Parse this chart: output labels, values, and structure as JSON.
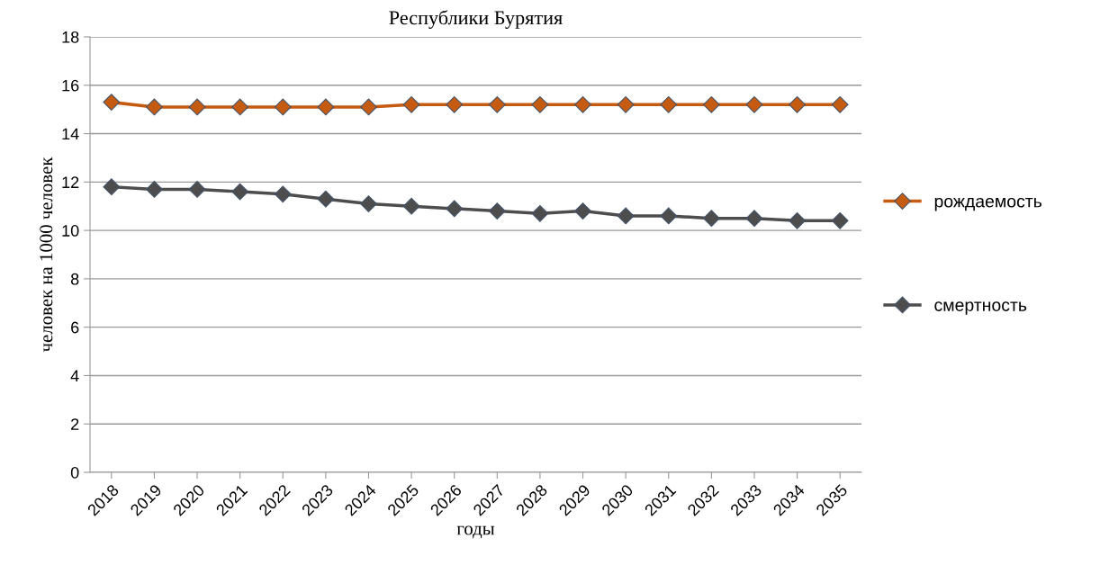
{
  "chart_data": {
    "type": "line",
    "title": "Республики Бурятия",
    "xlabel": "годы",
    "ylabel": "человек на 1000 человек",
    "categories": [
      "2018",
      "2019",
      "2020",
      "2021",
      "2022",
      "2023",
      "2024",
      "2025",
      "2026",
      "2027",
      "2028",
      "2029",
      "2030",
      "2031",
      "2032",
      "2033",
      "2034",
      "2035"
    ],
    "series": [
      {
        "name": "рождаемость",
        "color": "#c55a11",
        "values": [
          15.3,
          15.1,
          15.1,
          15.1,
          15.1,
          15.1,
          15.1,
          15.2,
          15.2,
          15.2,
          15.2,
          15.2,
          15.2,
          15.2,
          15.2,
          15.2,
          15.2,
          15.2
        ]
      },
      {
        "name": "смертность",
        "color": "#4d4d4d",
        "values": [
          11.8,
          11.7,
          11.7,
          11.6,
          11.5,
          11.3,
          11.1,
          11.0,
          10.9,
          10.8,
          10.7,
          10.8,
          10.6,
          10.6,
          10.5,
          10.5,
          10.4,
          10.4
        ]
      }
    ],
    "ylim": [
      0,
      18
    ],
    "yticks": [
      0,
      2,
      4,
      6,
      8,
      10,
      12,
      14,
      16,
      18
    ],
    "grid": "y",
    "legend": "right",
    "marker": "diamond",
    "line_style": "solid"
  }
}
